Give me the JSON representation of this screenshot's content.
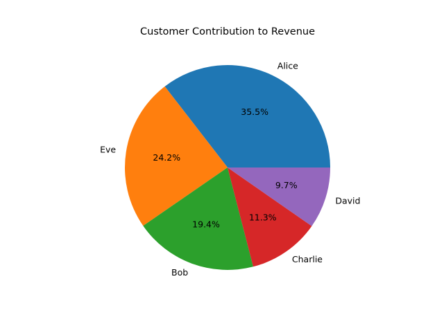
{
  "chart_data": {
    "type": "pie",
    "title": "Customer Contribution to Revenue",
    "start_angle_deg": 0,
    "direction": "counterclockwise",
    "slices": [
      {
        "label": "Alice",
        "percent": 35.5,
        "percent_label": "35.5%",
        "color": "#1f77b4"
      },
      {
        "label": "Eve",
        "percent": 24.2,
        "percent_label": "24.2%",
        "color": "#ff7f0e"
      },
      {
        "label": "Bob",
        "percent": 19.4,
        "percent_label": "19.4%",
        "color": "#2ca02c"
      },
      {
        "label": "Charlie",
        "percent": 11.3,
        "percent_label": "11.3%",
        "color": "#d62728"
      },
      {
        "label": "David",
        "percent": 9.7,
        "percent_label": "9.7%",
        "color": "#9467bd"
      }
    ]
  }
}
